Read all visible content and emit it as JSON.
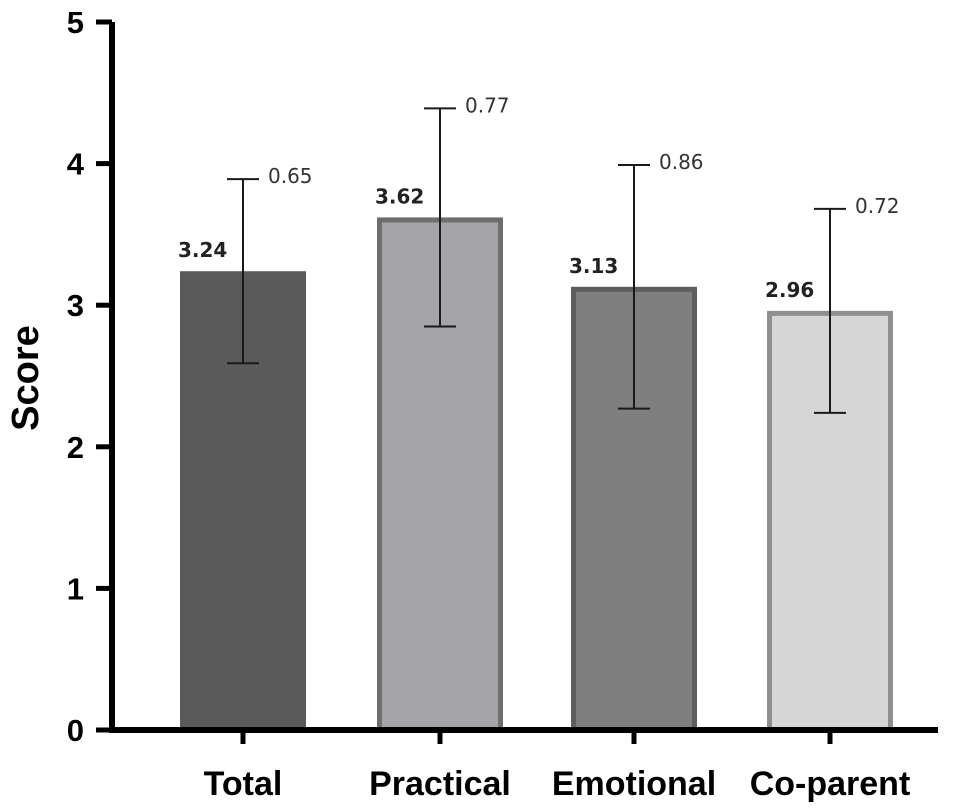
{
  "chart_data": {
    "type": "bar",
    "title": "",
    "xlabel": "",
    "ylabel": "Score",
    "ylim": [
      0,
      5
    ],
    "yticks": [
      "0",
      "1",
      "2",
      "3",
      "4",
      "5"
    ],
    "grid": false,
    "legend": "none",
    "categories": [
      "Total",
      "Practical",
      "Emotional",
      "Co-parent"
    ],
    "values": [
      3.24,
      3.62,
      3.13,
      2.96
    ],
    "value_labels": [
      "3.24",
      "3.62",
      "3.13",
      "2.96"
    ],
    "sd": [
      0.65,
      0.77,
      0.86,
      0.72
    ],
    "sd_labels": [
      "0.65",
      "0.77",
      "0.86",
      "0.72"
    ],
    "bar_fill": [
      "#5a5a5a",
      "#a3a3a8",
      "#7f7f7f",
      "#d6d6d6"
    ],
    "bar_stroke": [
      "#5a5a5a",
      "#6e6e6e",
      "#5e5e5e",
      "#8f8f8f"
    ]
  }
}
